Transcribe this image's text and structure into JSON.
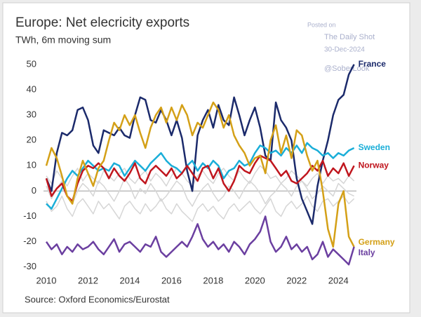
{
  "chart_data": {
    "type": "line",
    "title": "Europe: Net elecricity exports",
    "subtitle": "TWh, 6m moving sum",
    "source": "Source: Oxford Economics/Eurostat",
    "watermark": [
      "Posted on",
      "The Daily Shot",
      "30-Dec-2024",
      "@SoberLook"
    ],
    "x": [
      2010,
      2010.25,
      2010.5,
      2010.75,
      2011,
      2011.25,
      2011.5,
      2011.75,
      2012,
      2012.25,
      2012.5,
      2012.75,
      2013,
      2013.25,
      2013.5,
      2013.75,
      2014,
      2014.25,
      2014.5,
      2014.75,
      2015,
      2015.25,
      2015.5,
      2015.75,
      2016,
      2016.25,
      2016.5,
      2016.75,
      2017,
      2017.25,
      2017.5,
      2017.75,
      2018,
      2018.25,
      2018.5,
      2018.75,
      2019,
      2019.25,
      2019.5,
      2019.75,
      2020,
      2020.25,
      2020.5,
      2020.75,
      2021,
      2021.25,
      2021.5,
      2021.75,
      2022,
      2022.25,
      2022.5,
      2022.75,
      2023,
      2023.25,
      2023.5,
      2023.75,
      2024,
      2024.25,
      2024.5,
      2024.75
    ],
    "xlim": [
      2010,
      2025
    ],
    "xticks": [
      2010,
      2012,
      2014,
      2016,
      2018,
      2020,
      2022,
      2024
    ],
    "ylim": [
      -32,
      53
    ],
    "yticks": [
      -30,
      -20,
      -10,
      0,
      10,
      20,
      30,
      40,
      50
    ],
    "zero_line": true,
    "series": [
      {
        "color": "#d6d6d6",
        "values": [
          2,
          -3,
          1,
          4,
          -2,
          -5,
          0,
          3,
          1,
          -2,
          4,
          2,
          -1,
          -4,
          0,
          5,
          2,
          -3,
          1,
          -1,
          3,
          0,
          -4,
          -2,
          1,
          4,
          2,
          -3,
          -6,
          -2,
          1,
          3,
          -1,
          -4,
          -2,
          2,
          0,
          -3,
          1,
          4,
          2,
          -1,
          -5,
          -2,
          0,
          3,
          1,
          -2,
          2,
          4,
          1,
          -3,
          -1,
          2,
          0,
          -2,
          3,
          1,
          -1,
          -2
        ]
      },
      {
        "color": "#d6d6d6",
        "values": [
          -4,
          -8,
          -6,
          -2,
          -7,
          -10,
          -5,
          -3,
          -6,
          -9,
          -4,
          -7,
          -5,
          -8,
          -11,
          -6,
          -4,
          -7,
          -9,
          -5,
          -8,
          -6,
          -3,
          -7,
          -9,
          -5,
          -8,
          -10,
          -12,
          -7,
          -5,
          -8,
          -6,
          -9,
          -11,
          -7,
          -5,
          -8,
          -6,
          -4,
          -7,
          -9,
          -6,
          -3,
          -8,
          -10,
          -6,
          -4,
          -7,
          -5,
          -2,
          -6,
          -8,
          -4,
          -3,
          -6,
          -4,
          -2,
          -5,
          -3
        ]
      },
      {
        "color": "#d6d6d6",
        "values": [
          6,
          3,
          8,
          5,
          2,
          6,
          9,
          4,
          7,
          5,
          3,
          8,
          6,
          4,
          7,
          9,
          5,
          3,
          6,
          8,
          4,
          7,
          5,
          2,
          6,
          9,
          7,
          4,
          2,
          6,
          8,
          5,
          3,
          7,
          9,
          6,
          4,
          8,
          5,
          3,
          7,
          10,
          8,
          5,
          6,
          3,
          5,
          8,
          6,
          4,
          2,
          5,
          7,
          3,
          6,
          4,
          5,
          3,
          6,
          4
        ]
      },
      {
        "name": "France",
        "color": "#1b2a6b",
        "values": [
          5,
          0,
          15,
          23,
          22,
          24,
          32,
          33,
          28,
          18,
          15,
          24,
          23,
          22,
          25,
          22,
          21,
          30,
          37,
          36,
          28,
          27,
          32,
          28,
          22,
          28,
          21,
          8,
          0,
          22,
          28,
          32,
          25,
          34,
          28,
          26,
          37,
          30,
          22,
          28,
          33,
          25,
          14,
          12,
          35,
          28,
          25,
          20,
          5,
          -3,
          -8,
          -13,
          2,
          12,
          20,
          30,
          36,
          38,
          46,
          50
        ]
      },
      {
        "name": "Sweden",
        "color": "#1aaed8",
        "values": [
          -5,
          -7,
          -3,
          1,
          5,
          8,
          6,
          9,
          12,
          10,
          8,
          9,
          8,
          11,
          10,
          6,
          9,
          12,
          10,
          8,
          11,
          13,
          15,
          12,
          10,
          9,
          7,
          10,
          12,
          8,
          11,
          9,
          12,
          10,
          5,
          8,
          9,
          12,
          10,
          11,
          15,
          18,
          17,
          15,
          16,
          14,
          17,
          15,
          18,
          15,
          19,
          17,
          16,
          14,
          15,
          13,
          15,
          14,
          16,
          17
        ]
      },
      {
        "name": "Norway",
        "color": "#c0161e",
        "values": [
          5,
          -2,
          1,
          3,
          -2,
          -4,
          3,
          8,
          10,
          9,
          11,
          9,
          5,
          9,
          6,
          4,
          7,
          11,
          5,
          3,
          8,
          10,
          8,
          6,
          9,
          5,
          7,
          10,
          7,
          4,
          9,
          10,
          5,
          9,
          3,
          0,
          4,
          10,
          8,
          7,
          11,
          14,
          13,
          12,
          9,
          6,
          8,
          4,
          3,
          5,
          7,
          10,
          8,
          12,
          6,
          9,
          7,
          11,
          6,
          10
        ]
      },
      {
        "name": "Germany",
        "color": "#d4a017",
        "values": [
          10,
          17,
          13,
          6,
          -2,
          -5,
          5,
          12,
          7,
          2,
          9,
          12,
          20,
          27,
          24,
          30,
          26,
          30,
          23,
          17,
          25,
          30,
          33,
          27,
          33,
          28,
          34,
          30,
          22,
          27,
          25,
          30,
          35,
          32,
          25,
          30,
          22,
          18,
          15,
          10,
          13,
          14,
          7,
          20,
          26,
          15,
          22,
          13,
          24,
          22,
          14,
          8,
          12,
          0,
          -15,
          -22,
          -5,
          0,
          -18,
          -22
        ]
      },
      {
        "name": "Italy",
        "color": "#6b3fa0",
        "values": [
          -20,
          -23,
          -21,
          -25,
          -22,
          -24,
          -21,
          -23,
          -22,
          -20,
          -23,
          -25,
          -22,
          -19,
          -24,
          -21,
          -20,
          -22,
          -24,
          -21,
          -22,
          -18,
          -24,
          -26,
          -24,
          -22,
          -20,
          -22,
          -18,
          -13,
          -19,
          -22,
          -20,
          -23,
          -21,
          -24,
          -20,
          -22,
          -25,
          -21,
          -19,
          -16,
          -10,
          -20,
          -24,
          -22,
          -18,
          -23,
          -21,
          -24,
          -22,
          -27,
          -25,
          -20,
          -26,
          -23,
          -25,
          -27,
          -29,
          -22
        ]
      }
    ]
  }
}
